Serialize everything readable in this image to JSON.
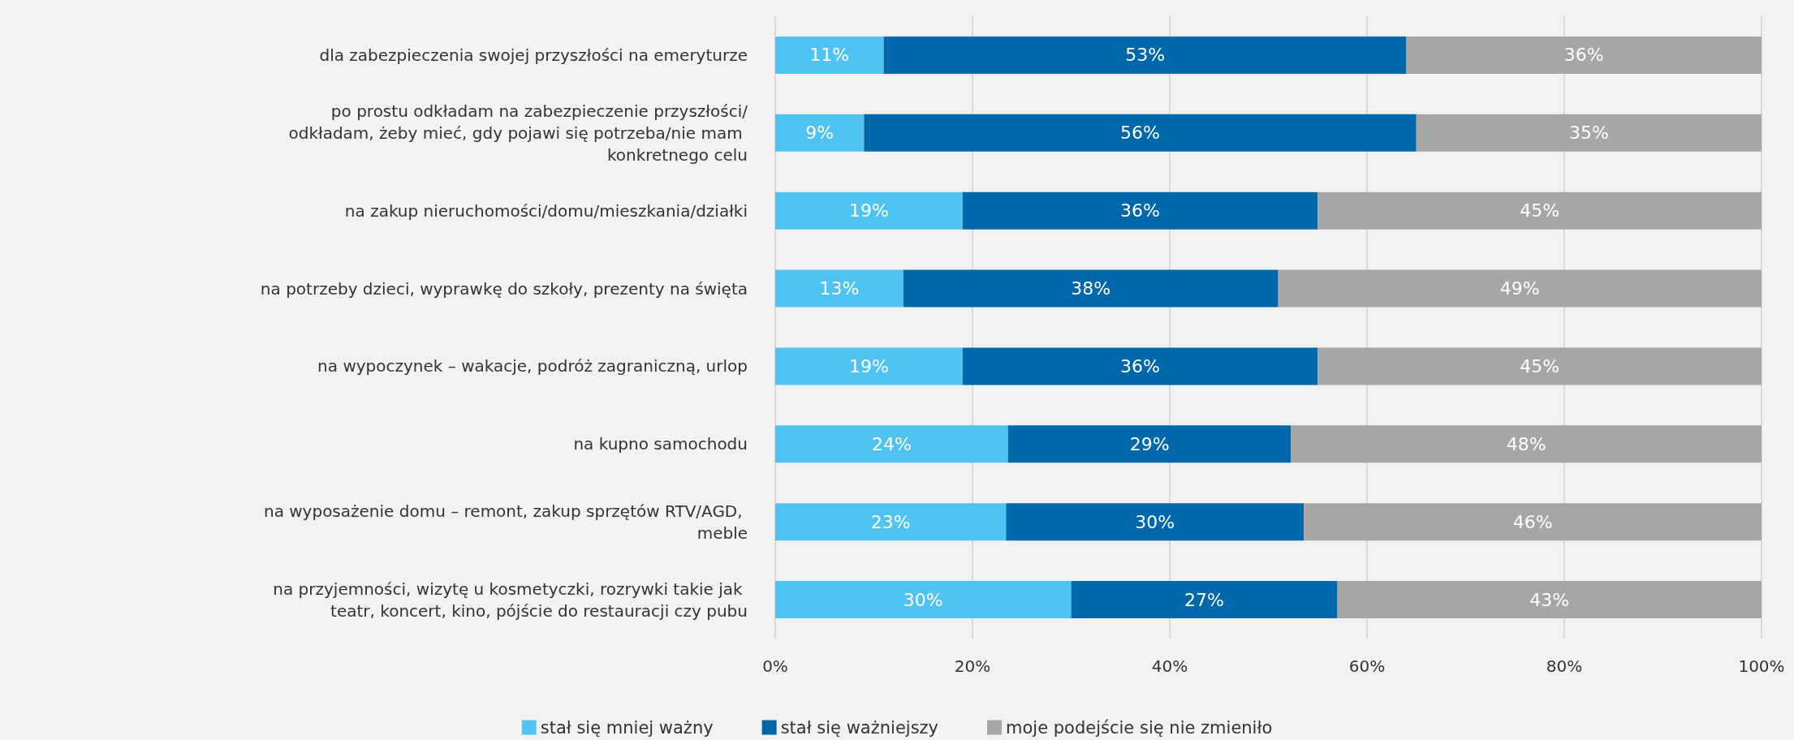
{
  "chart_data": {
    "type": "bar",
    "orientation": "horizontal",
    "stacked": true,
    "categories": [
      "dla zabezpieczenia swojej przyszłości na emeryturze",
      "po prostu odkładam na zabezpieczenie przyszłości/odkładam, żeby mieć, gdy pojawi się potrzeba/nie mam konkretnego celu",
      "na zakup nieruchomości/domu/mieszkania/działki",
      "na potrzeby dzieci, wyprawkę do szkoły, prezenty na święta",
      "na wypoczynek – wakacje, podróż zagraniczną, urlop",
      "na kupno samochodu",
      "na wyposażenie domu – remont, zakup sprzętów RTV/AGD, meble",
      "na przyjemności, wizytę u kosmetyczki, rozrywki takie jak teatr, koncert, kino, pójście do restauracji czy pubu"
    ],
    "series": [
      {
        "name": "stał się mniej ważny",
        "color": "#4fc3f1",
        "values": [
          11,
          9,
          19,
          13,
          19,
          23.6,
          23.4,
          30
        ],
        "value_labels": [
          "11%",
          "9%",
          "19%",
          "13%",
          "19%",
          "24%",
          "23%",
          "30%"
        ]
      },
      {
        "name": "stał się ważniejszy",
        "color": "#0068aa",
        "values": [
          53,
          56,
          36,
          38,
          36,
          28.7,
          30.2,
          27
        ],
        "value_labels": [
          "53%",
          "56%",
          "36%",
          "38%",
          "36%",
          "29%",
          "30%",
          "27%"
        ]
      },
      {
        "name": "moje podejście się nie zmieniło",
        "color": "#a6a6a6",
        "values": [
          36,
          35,
          45,
          49,
          45,
          47.7,
          46.4,
          43
        ],
        "value_labels": [
          "36%",
          "35%",
          "45%",
          "49%",
          "45%",
          "48%",
          "46%",
          "43%"
        ]
      }
    ],
    "xlim": [
      0,
      100
    ],
    "xticks": [
      {
        "value": 0,
        "label": "0%"
      },
      {
        "value": 20,
        "label": "20%"
      },
      {
        "value": 40,
        "label": "40%"
      },
      {
        "value": 60,
        "label": "60%"
      },
      {
        "value": 80,
        "label": "80%"
      },
      {
        "value": 100,
        "label": "100%"
      }
    ],
    "grid": "x",
    "legend": "bottom"
  }
}
